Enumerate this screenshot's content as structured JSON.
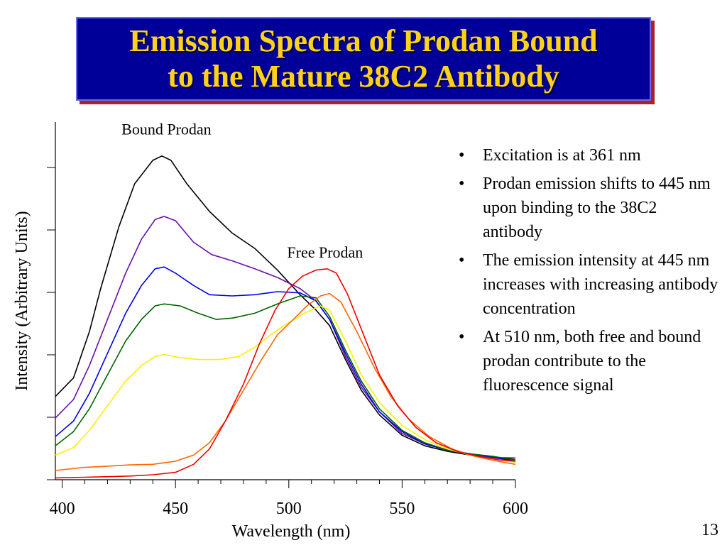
{
  "slide": {
    "title_line1": "Emission Spectra of Prodan Bound",
    "title_line2": "to the Mature 38C2 Antibody",
    "number": "13",
    "colors": {
      "title_bg": "#000099",
      "title_text": "#ffd21a",
      "shadow": "#aa2222"
    }
  },
  "bullets": [
    "Excitation is at 361 nm",
    "Prodan emission shifts to 445 nm upon binding to the 38C2 antibody",
    "The emission intensity at 445 nm increases with increasing antibody concentration",
    "At 510 nm, both free and bound prodan contribute to the fluorescence signal"
  ],
  "chart_data": {
    "type": "line",
    "xlabel": "Wavelength (nm)",
    "ylabel": "Intensity (Arbitrary Units)",
    "xlim": [
      397,
      600
    ],
    "ylim": [
      0,
      5.8
    ],
    "x_ticks": [
      400,
      450,
      500,
      550,
      600
    ],
    "y_tick_count": 6,
    "grid": false,
    "annotations": [
      {
        "text": "Bound Prodan",
        "x": 446,
        "y": 5.6
      },
      {
        "text": "Free Prodan",
        "x": 516,
        "y": 3.6
      }
    ],
    "series": [
      {
        "color": "#000000",
        "points": [
          [
            397,
            1.35
          ],
          [
            405,
            1.65
          ],
          [
            412,
            2.4
          ],
          [
            417,
            3.1
          ],
          [
            425,
            4.1
          ],
          [
            432,
            4.8
          ],
          [
            440,
            5.18
          ],
          [
            444,
            5.25
          ],
          [
            448,
            5.18
          ],
          [
            455,
            4.8
          ],
          [
            465,
            4.35
          ],
          [
            475,
            4.0
          ],
          [
            485,
            3.75
          ],
          [
            495,
            3.4
          ],
          [
            505,
            3.0
          ],
          [
            512,
            2.75
          ],
          [
            518,
            2.5
          ],
          [
            525,
            1.95
          ],
          [
            532,
            1.45
          ],
          [
            540,
            1.05
          ],
          [
            550,
            0.72
          ],
          [
            560,
            0.55
          ],
          [
            570,
            0.46
          ],
          [
            580,
            0.4
          ],
          [
            590,
            0.36
          ],
          [
            600,
            0.35
          ]
        ]
      },
      {
        "color": "#6a0dad",
        "points": [
          [
            397,
            1.0
          ],
          [
            405,
            1.3
          ],
          [
            412,
            1.85
          ],
          [
            420,
            2.6
          ],
          [
            428,
            3.35
          ],
          [
            435,
            3.9
          ],
          [
            441,
            4.22
          ],
          [
            445,
            4.27
          ],
          [
            450,
            4.2
          ],
          [
            458,
            3.85
          ],
          [
            466,
            3.65
          ],
          [
            475,
            3.55
          ],
          [
            485,
            3.42
          ],
          [
            495,
            3.28
          ],
          [
            505,
            3.1
          ],
          [
            512,
            2.9
          ],
          [
            518,
            2.6
          ],
          [
            525,
            2.0
          ],
          [
            532,
            1.5
          ],
          [
            540,
            1.1
          ],
          [
            550,
            0.75
          ],
          [
            560,
            0.58
          ],
          [
            570,
            0.48
          ],
          [
            580,
            0.42
          ],
          [
            590,
            0.36
          ],
          [
            600,
            0.3
          ]
        ]
      },
      {
        "color": "#0000ee",
        "points": [
          [
            397,
            0.7
          ],
          [
            405,
            0.95
          ],
          [
            412,
            1.4
          ],
          [
            420,
            2.05
          ],
          [
            428,
            2.7
          ],
          [
            435,
            3.15
          ],
          [
            441,
            3.42
          ],
          [
            445,
            3.45
          ],
          [
            450,
            3.35
          ],
          [
            458,
            3.15
          ],
          [
            465,
            3.0
          ],
          [
            475,
            2.98
          ],
          [
            485,
            3.0
          ],
          [
            495,
            3.05
          ],
          [
            505,
            3.03
          ],
          [
            512,
            2.9
          ],
          [
            518,
            2.6
          ],
          [
            525,
            2.05
          ],
          [
            532,
            1.55
          ],
          [
            540,
            1.1
          ],
          [
            550,
            0.78
          ],
          [
            560,
            0.58
          ],
          [
            570,
            0.48
          ],
          [
            580,
            0.42
          ],
          [
            590,
            0.37
          ],
          [
            600,
            0.3
          ]
        ]
      },
      {
        "color": "#006400",
        "points": [
          [
            397,
            0.55
          ],
          [
            405,
            0.78
          ],
          [
            412,
            1.15
          ],
          [
            420,
            1.7
          ],
          [
            428,
            2.25
          ],
          [
            435,
            2.6
          ],
          [
            441,
            2.82
          ],
          [
            445,
            2.85
          ],
          [
            452,
            2.82
          ],
          [
            460,
            2.7
          ],
          [
            468,
            2.6
          ],
          [
            475,
            2.62
          ],
          [
            485,
            2.7
          ],
          [
            495,
            2.85
          ],
          [
            505,
            2.98
          ],
          [
            512,
            2.95
          ],
          [
            518,
            2.65
          ],
          [
            525,
            2.1
          ],
          [
            532,
            1.6
          ],
          [
            540,
            1.15
          ],
          [
            550,
            0.8
          ],
          [
            560,
            0.6
          ],
          [
            570,
            0.48
          ],
          [
            580,
            0.42
          ],
          [
            590,
            0.38
          ],
          [
            600,
            0.32
          ]
        ]
      },
      {
        "color": "#ffee00",
        "points": [
          [
            397,
            0.4
          ],
          [
            405,
            0.52
          ],
          [
            412,
            0.8
          ],
          [
            420,
            1.2
          ],
          [
            428,
            1.6
          ],
          [
            435,
            1.85
          ],
          [
            441,
            2.0
          ],
          [
            445,
            2.03
          ],
          [
            452,
            1.98
          ],
          [
            460,
            1.95
          ],
          [
            470,
            1.95
          ],
          [
            478,
            2.0
          ],
          [
            485,
            2.15
          ],
          [
            492,
            2.35
          ],
          [
            500,
            2.55
          ],
          [
            508,
            2.72
          ],
          [
            514,
            2.82
          ],
          [
            518,
            2.75
          ],
          [
            525,
            2.25
          ],
          [
            532,
            1.7
          ],
          [
            540,
            1.25
          ],
          [
            550,
            0.88
          ],
          [
            560,
            0.65
          ],
          [
            570,
            0.5
          ],
          [
            580,
            0.4
          ],
          [
            590,
            0.34
          ],
          [
            600,
            0.28
          ]
        ]
      },
      {
        "color": "#ff6600",
        "points": [
          [
            397,
            0.15
          ],
          [
            410,
            0.2
          ],
          [
            420,
            0.22
          ],
          [
            430,
            0.24
          ],
          [
            440,
            0.25
          ],
          [
            450,
            0.3
          ],
          [
            458,
            0.4
          ],
          [
            465,
            0.6
          ],
          [
            472,
            0.95
          ],
          [
            480,
            1.45
          ],
          [
            488,
            1.95
          ],
          [
            495,
            2.35
          ],
          [
            502,
            2.6
          ],
          [
            508,
            2.82
          ],
          [
            514,
            2.98
          ],
          [
            518,
            3.02
          ],
          [
            523,
            2.88
          ],
          [
            530,
            2.4
          ],
          [
            538,
            1.8
          ],
          [
            545,
            1.35
          ],
          [
            553,
            0.98
          ],
          [
            562,
            0.7
          ],
          [
            572,
            0.5
          ],
          [
            582,
            0.38
          ],
          [
            592,
            0.3
          ],
          [
            600,
            0.25
          ]
        ]
      },
      {
        "color": "#ee0000",
        "points": [
          [
            397,
            0.03
          ],
          [
            410,
            0.04
          ],
          [
            420,
            0.05
          ],
          [
            430,
            0.06
          ],
          [
            440,
            0.08
          ],
          [
            450,
            0.12
          ],
          [
            458,
            0.25
          ],
          [
            465,
            0.5
          ],
          [
            472,
            0.95
          ],
          [
            480,
            1.55
          ],
          [
            487,
            2.2
          ],
          [
            494,
            2.75
          ],
          [
            500,
            3.1
          ],
          [
            506,
            3.3
          ],
          [
            512,
            3.4
          ],
          [
            517,
            3.42
          ],
          [
            521,
            3.35
          ],
          [
            526,
            3.0
          ],
          [
            533,
            2.35
          ],
          [
            540,
            1.7
          ],
          [
            548,
            1.2
          ],
          [
            556,
            0.85
          ],
          [
            565,
            0.6
          ],
          [
            575,
            0.45
          ],
          [
            585,
            0.37
          ],
          [
            593,
            0.32
          ],
          [
            600,
            0.3
          ]
        ]
      }
    ]
  }
}
